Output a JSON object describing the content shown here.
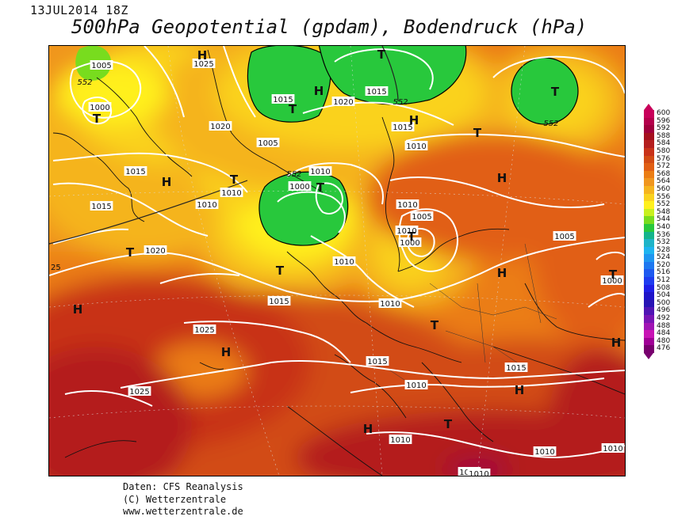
{
  "header": {
    "datestamp": "13JUL2014 18Z",
    "title": "500hPa Geopotential (gpdam), Bodendruck (hPa)"
  },
  "legend": {
    "levels": [
      {
        "value": "600",
        "color": "#c8005a"
      },
      {
        "value": "596",
        "color": "#b4004b"
      },
      {
        "value": "592",
        "color": "#a0003c"
      },
      {
        "value": "588",
        "color": "#a5101e"
      },
      {
        "value": "584",
        "color": "#b41e1e"
      },
      {
        "value": "580",
        "color": "#c83219"
      },
      {
        "value": "576",
        "color": "#d24b14"
      },
      {
        "value": "572",
        "color": "#e15f14"
      },
      {
        "value": "568",
        "color": "#eb7d14"
      },
      {
        "value": "564",
        "color": "#f0961e"
      },
      {
        "value": "560",
        "color": "#f5b41e"
      },
      {
        "value": "556",
        "color": "#fad21e"
      },
      {
        "value": "552",
        "color": "#fff01e"
      },
      {
        "value": "548",
        "color": "#c8f01e"
      },
      {
        "value": "544",
        "color": "#78dc1e"
      },
      {
        "value": "540",
        "color": "#28c83c"
      },
      {
        "value": "536",
        "color": "#14b48c"
      },
      {
        "value": "532",
        "color": "#1eb4c8"
      },
      {
        "value": "528",
        "color": "#1eb4f0"
      },
      {
        "value": "524",
        "color": "#1e96f0"
      },
      {
        "value": "520",
        "color": "#1e78f0"
      },
      {
        "value": "516",
        "color": "#1e5af0"
      },
      {
        "value": "512",
        "color": "#1e3cf0"
      },
      {
        "value": "508",
        "color": "#1e1ee6"
      },
      {
        "value": "504",
        "color": "#1e14c8"
      },
      {
        "value": "500",
        "color": "#2814b4"
      },
      {
        "value": "496",
        "color": "#5014b4"
      },
      {
        "value": "492",
        "color": "#7814b4"
      },
      {
        "value": "488",
        "color": "#a014b4"
      },
      {
        "value": "484",
        "color": "#c814b4"
      },
      {
        "value": "480",
        "color": "#a00096"
      },
      {
        "value": "476",
        "color": "#78006e"
      }
    ]
  },
  "map": {
    "high_marker": "H",
    "low_marker": "T",
    "isobar_labels": [
      "1005",
      "1025",
      "1000",
      "1020",
      "1015",
      "1015",
      "1020",
      "1015",
      "1010",
      "1005",
      "1010",
      "1000",
      "1010",
      "1010",
      "1015",
      "1010",
      "1010",
      "1015",
      "1020",
      "1005",
      "1000",
      "1010",
      "1015",
      "1010",
      "1000",
      "1010",
      "1025",
      "1015",
      "1015",
      "1025",
      "1010",
      "1015",
      "1010",
      "1010",
      "1010",
      "1005",
      "1010",
      "1010"
    ],
    "height_labels": [
      "552",
      "552",
      "552",
      "552"
    ],
    "edge_labels": [
      "25"
    ]
  },
  "credits": {
    "line1": "Daten: CFS Reanalysis",
    "line2": "(C) Wetterzentrale",
    "line3": "www.wetterzentrale.de"
  }
}
